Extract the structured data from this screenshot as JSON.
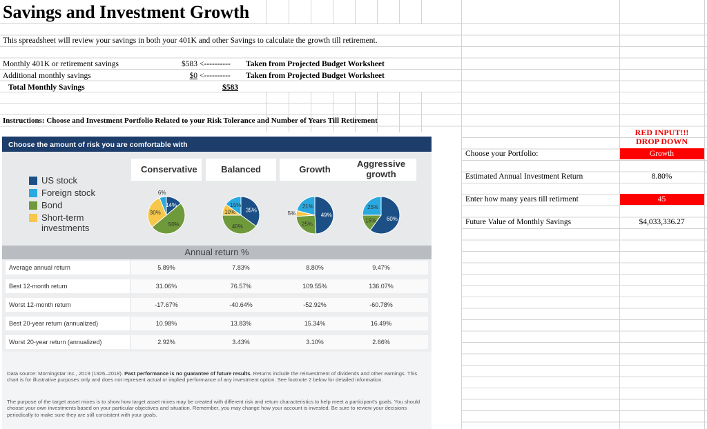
{
  "title": "Savings and Investment Growth",
  "description": "This spreadsheet will review your savings in both your 401K and other Savings to calculate the growth till retirement.",
  "savings_rows": [
    {
      "label": "Monthly 401K or retirement savings",
      "amount": "$583",
      "arrow": "<----------",
      "source": "Taken from Projected Budget Worksheet"
    },
    {
      "label": "Additional monthly savings",
      "amount": "$0",
      "arrow": "<----------",
      "source": "Taken from Projected Budget Worksheet"
    }
  ],
  "total": {
    "label": "Total Monthly Savings",
    "amount": "$583"
  },
  "instructions": "Instructions:  Choose and Investment Portfolio Related to your Risk Tolerance and Number of Years Till Retirement",
  "graphic": {
    "header": "Choose the amount of risk you are comfortable with",
    "legend": [
      {
        "name": "US stock",
        "color": "#1b4f86"
      },
      {
        "name": "Foreign stock",
        "color": "#2aa9e0"
      },
      {
        "name": "Bond",
        "color": "#6f9a3b"
      },
      {
        "name": "Short-term investments",
        "color": "#f6c74a"
      }
    ],
    "portfolios": [
      {
        "name": "Conservative",
        "values": [
          14,
          6,
          50,
          30
        ],
        "value_labels": [
          "14%",
          "6%",
          "50%",
          "30%"
        ]
      },
      {
        "name": "Balanced",
        "values": [
          35,
          15,
          40,
          10
        ],
        "value_labels": [
          "35%",
          "15%",
          "40%",
          "10%"
        ]
      },
      {
        "name": "Growth",
        "values": [
          49,
          21,
          25,
          5
        ],
        "value_labels": [
          "49%",
          "21%",
          "25%",
          "5%"
        ]
      },
      {
        "name": "Aggressive growth",
        "values": [
          60,
          25,
          15,
          null
        ],
        "value_labels": [
          "60%",
          "25%",
          "15%",
          null
        ]
      }
    ],
    "annual_return_title": "Annual return %",
    "table": [
      {
        "label": "Average annual return",
        "values": [
          "5.89%",
          "7.83%",
          "8.80%",
          "9.47%"
        ]
      },
      {
        "label": "Best 12-month return",
        "values": [
          "31.06%",
          "76.57%",
          "109.55%",
          "136.07%"
        ]
      },
      {
        "label": "Worst 12-month return",
        "values": [
          "-17.67%",
          "-40.64%",
          "-52.92%",
          "-60.78%"
        ]
      },
      {
        "label": "Best 20-year return (annualized)",
        "values": [
          "10.98%",
          "13.83%",
          "15.34%",
          "16.49%"
        ]
      },
      {
        "label": "Worst 20-year return (annualized)",
        "values": [
          "2.92%",
          "3.43%",
          "3.10%",
          "2.66%"
        ]
      }
    ],
    "notes": [
      [
        "Data source: Morningstar Inc., 2019 (1926–2018). ",
        "Past performance is no guarantee of future results.",
        " Returns include the reinvestment of dividends and other earnings. This chart is for illustrative purposes only and does not represent actual or implied performance of any investment option. See footnote 2 below for detailed information."
      ],
      [
        "The purpose of the target asset mixes is to show how target asset mixes may be created with different risk and return characteristics to help meet a participant's goals. You should choose your own investments based on your particular objectives and situation. Remember, you may change how your account is invested. Be sure to review your decisions periodically to make sure they are still consistent with your goals."
      ]
    ]
  },
  "calculator": {
    "note": "RED INPUT!!! DROP DOWN",
    "rows": [
      {
        "label": "Choose your Portfolio:",
        "value": "Growth",
        "input": true
      },
      {
        "label": "Estimated Annual Investment Return",
        "value": "8.80%",
        "input": false
      },
      {
        "label": "Enter how many years till retirment",
        "value": "45",
        "input": true
      },
      {
        "label": "Future Value of Monthly Savings",
        "value": "$4,033,336.27",
        "input": false
      }
    ]
  }
}
